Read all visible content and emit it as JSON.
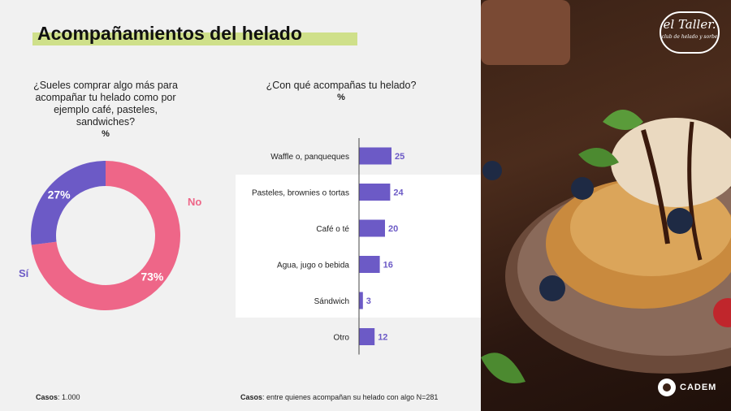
{
  "title": "Acompañamientos del helado",
  "donut": {
    "question": "¿Sueles comprar algo más para acompañar tu helado como por ejemplo café, pasteles, sandwiches?",
    "unit": "%",
    "note_label": "Casos",
    "note_value": ": 1.000"
  },
  "bars": {
    "question": "¿Con qué acompañas tu helado?",
    "unit": "%",
    "note_label": "Casos",
    "note_value": ": entre quienes acompañan su helado con algo N=281"
  },
  "logos": {
    "taller_main": "el Taller.",
    "taller_sub": "club de helado y sorbe",
    "cadem": "CADEM"
  },
  "colors": {
    "accent": "#cfe08a",
    "no": "#ee6688",
    "si": "#6c5ac6",
    "bar": "#6c5ac6",
    "band": "#ffffff"
  },
  "chart_data": [
    {
      "type": "pie",
      "title": "¿Sueles comprar algo más para acompañar tu helado como por ejemplo café, pasteles, sandwiches?",
      "categories": [
        "No",
        "Sí"
      ],
      "values": [
        73,
        27
      ],
      "value_labels": [
        "73%",
        "27%"
      ],
      "colors": [
        "#ee6688",
        "#6c5ac6"
      ]
    },
    {
      "type": "bar",
      "title": "¿Con qué acompañas tu helado?",
      "categories": [
        "Waffle o, panqueques",
        "Pasteles, brownies o tortas",
        "Café o té",
        "Agua, jugo o bebida",
        "Sándwich",
        "Otro"
      ],
      "values": [
        25,
        24,
        20,
        16,
        3,
        12
      ],
      "orientation": "horizontal",
      "color": "#6c5ac6"
    }
  ]
}
